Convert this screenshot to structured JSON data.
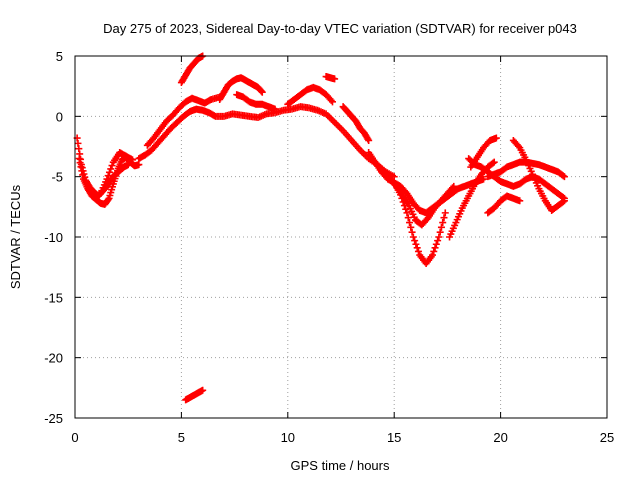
{
  "chart_data": {
    "type": "scatter",
    "title": "Day 275 of 2023, Sidereal Day-to-day VTEC variation (SDTVAR) for receiver p043",
    "xlabel": "GPS time / hours",
    "ylabel": "SDTVAR / TECUs",
    "xlim": [
      0,
      25
    ],
    "ylim": [
      -25,
      5
    ],
    "xticks": [
      0,
      5,
      10,
      15,
      20,
      25
    ],
    "yticks": [
      -25,
      -20,
      -15,
      -10,
      -5,
      0,
      5
    ],
    "grid": true,
    "marker": "plus",
    "color": "#ff0000",
    "series": [
      {
        "name": "trace-a",
        "x": [
          0.2,
          0.4,
          0.6,
          0.8,
          1.0,
          1.2,
          1.4,
          1.6,
          1.8,
          2.0,
          2.2,
          2.4,
          2.6,
          2.8,
          3.0
        ],
        "y": [
          -3.5,
          -5.2,
          -6.0,
          -6.6,
          -6.9,
          -7.2,
          -7.3,
          -6.8,
          -5.6,
          -4.5,
          -3.6,
          -3.4,
          -3.8,
          -4.1,
          -4.0
        ]
      },
      {
        "name": "trace-b",
        "x": [
          0.1,
          0.3,
          0.5,
          0.7,
          0.9,
          1.1,
          1.3,
          1.5,
          1.7,
          1.9,
          2.1,
          2.3,
          2.5
        ],
        "y": [
          -1.8,
          -4.0,
          -5.3,
          -5.9,
          -6.3,
          -6.6,
          -6.2,
          -5.8,
          -5.2,
          -4.8,
          -4.5,
          -4.2,
          -4.0
        ]
      },
      {
        "name": "trace-c",
        "x": [
          1.2,
          1.5,
          1.8,
          2.1,
          2.4,
          2.7
        ],
        "y": [
          -6.4,
          -5.2,
          -3.8,
          -3.0,
          -3.3,
          -3.6
        ]
      },
      {
        "name": "trace-d",
        "x": [
          3.0,
          3.3,
          3.6,
          3.9,
          4.2,
          4.5,
          4.8,
          5.1,
          5.4,
          5.7,
          6.0,
          6.3,
          6.6,
          7.0,
          7.4,
          7.8,
          8.2,
          8.6,
          9.0,
          9.4,
          9.8,
          10.2,
          10.6,
          11.0,
          11.4,
          11.8,
          12.2,
          12.6,
          13.0,
          13.4,
          13.8,
          14.2,
          14.6,
          15.0
        ],
        "y": [
          -3.5,
          -3.2,
          -2.8,
          -2.2,
          -1.6,
          -1.0,
          -0.5,
          0.0,
          0.4,
          0.6,
          0.5,
          0.3,
          0.0,
          0.0,
          0.2,
          0.1,
          0.0,
          -0.1,
          0.2,
          0.3,
          0.5,
          0.6,
          0.8,
          0.7,
          0.5,
          0.2,
          -0.5,
          -1.2,
          -2.0,
          -2.8,
          -3.5,
          -4.0,
          -4.6,
          -5.0
        ]
      },
      {
        "name": "trace-e",
        "x": [
          3.4,
          3.7,
          4.0,
          4.3,
          4.6,
          4.9,
          5.2,
          5.5,
          5.8,
          6.1,
          6.4,
          6.8
        ],
        "y": [
          -2.4,
          -1.8,
          -1.1,
          -0.4,
          0.1,
          0.7,
          1.2,
          1.5,
          1.3,
          1.1,
          1.4,
          1.6
        ]
      },
      {
        "name": "trace-f",
        "x": [
          5.0,
          5.2,
          5.4,
          5.6,
          5.8,
          6.0
        ],
        "y": [
          2.8,
          3.4,
          4.0,
          4.4,
          4.8,
          5.0
        ]
      },
      {
        "name": "trace-g",
        "x": [
          6.8,
          7.0,
          7.2,
          7.4,
          7.6,
          7.8,
          8.0,
          8.2,
          8.4,
          8.6,
          8.8
        ],
        "y": [
          1.4,
          2.0,
          2.6,
          2.9,
          3.1,
          3.2,
          3.0,
          2.8,
          2.6,
          2.4,
          2.0
        ]
      },
      {
        "name": "trace-h",
        "x": [
          7.6,
          7.9,
          8.2,
          8.5,
          8.8,
          9.1,
          9.4
        ],
        "y": [
          1.8,
          1.6,
          1.2,
          1.0,
          1.0,
          0.8,
          0.6
        ]
      },
      {
        "name": "trace-i",
        "x": [
          10.0,
          10.3,
          10.6,
          10.9,
          11.2,
          11.5,
          11.8,
          12.1
        ],
        "y": [
          1.0,
          1.4,
          1.8,
          2.2,
          2.4,
          2.2,
          1.8,
          1.2
        ]
      },
      {
        "name": "trace-j",
        "x": [
          11.8,
          12.0,
          12.2
        ],
        "y": [
          3.3,
          3.2,
          3.1
        ]
      },
      {
        "name": "trace-k",
        "x": [
          12.6,
          12.8,
          13.0,
          13.2,
          13.4,
          13.6,
          13.8
        ],
        "y": [
          0.8,
          0.4,
          0.0,
          -0.4,
          -1.0,
          -1.4,
          -2.0
        ]
      },
      {
        "name": "trace-l",
        "x": [
          13.8,
          14.1,
          14.4,
          14.7,
          15.0,
          15.3,
          15.6,
          15.9,
          16.2,
          16.5,
          16.8,
          17.1,
          17.4
        ],
        "y": [
          -3.0,
          -3.8,
          -4.6,
          -5.2,
          -5.5,
          -6.5,
          -8.0,
          -10.0,
          -11.5,
          -12.2,
          -11.5,
          -10.0,
          -8.0
        ]
      },
      {
        "name": "trace-m",
        "x": [
          14.2,
          14.5,
          14.8,
          15.1,
          15.4,
          15.7,
          16.0,
          16.3,
          16.6,
          16.9,
          17.2,
          17.5,
          17.8
        ],
        "y": [
          -4.0,
          -4.6,
          -5.2,
          -5.8,
          -6.6,
          -7.4,
          -8.6,
          -9.0,
          -8.4,
          -7.6,
          -7.0,
          -6.4,
          -5.8
        ]
      },
      {
        "name": "trace-n",
        "x": [
          15.0,
          15.3,
          15.6,
          15.9,
          16.2,
          16.5,
          16.8,
          17.1,
          17.4,
          17.7,
          18.0,
          18.3,
          18.6,
          18.9,
          19.2
        ],
        "y": [
          -5.5,
          -5.8,
          -6.4,
          -7.2,
          -7.8,
          -8.0,
          -7.6,
          -7.2,
          -6.8,
          -6.4,
          -6.0,
          -5.8,
          -5.6,
          -5.4,
          -5.2
        ]
      },
      {
        "name": "trace-o",
        "x": [
          17.6,
          17.9,
          18.2,
          18.5,
          18.8,
          19.1,
          19.4,
          19.7
        ],
        "y": [
          -10.0,
          -8.8,
          -7.6,
          -6.6,
          -5.6,
          -4.8,
          -4.2,
          -3.8
        ]
      },
      {
        "name": "trace-p",
        "x": [
          18.5,
          18.8,
          19.1,
          19.4,
          19.7,
          20.0,
          20.3,
          20.6,
          20.9,
          21.2,
          21.5,
          21.8,
          22.1,
          22.4,
          22.7,
          23.0
        ],
        "y": [
          -3.5,
          -4.0,
          -4.2,
          -4.6,
          -5.0,
          -5.4,
          -5.6,
          -5.8,
          -5.6,
          -5.2,
          -5.0,
          -5.2,
          -5.6,
          -6.0,
          -6.4,
          -6.8
        ]
      },
      {
        "name": "trace-q",
        "x": [
          18.6,
          18.9,
          19.2,
          19.5,
          19.8
        ],
        "y": [
          -4.2,
          -3.4,
          -2.6,
          -2.0,
          -1.8
        ]
      },
      {
        "name": "trace-r",
        "x": [
          19.4,
          19.7,
          20.0,
          20.3,
          20.6,
          20.9,
          21.2,
          21.5,
          21.8,
          22.1,
          22.4,
          22.7,
          23.0
        ],
        "y": [
          -5.0,
          -4.8,
          -4.6,
          -4.2,
          -4.0,
          -3.8,
          -3.8,
          -3.9,
          -4.0,
          -4.2,
          -4.4,
          -4.6,
          -5.0
        ]
      },
      {
        "name": "trace-s",
        "x": [
          19.4,
          19.7,
          20.0,
          20.3,
          20.6,
          20.9
        ],
        "y": [
          -8.0,
          -7.6,
          -7.0,
          -6.6,
          -6.8,
          -7.0
        ]
      },
      {
        "name": "trace-t",
        "x": [
          20.6,
          20.9,
          21.2,
          21.5,
          21.8,
          22.1,
          22.4,
          22.7,
          23.0
        ],
        "y": [
          -2.0,
          -2.6,
          -3.6,
          -4.8,
          -6.0,
          -7.0,
          -7.8,
          -7.4,
          -7.0
        ]
      },
      {
        "name": "trace-u",
        "x": [
          5.2,
          5.4,
          5.6,
          5.8,
          6.0
        ],
        "y": [
          -23.5,
          -23.3,
          -23.1,
          -22.9,
          -22.7
        ]
      }
    ]
  }
}
